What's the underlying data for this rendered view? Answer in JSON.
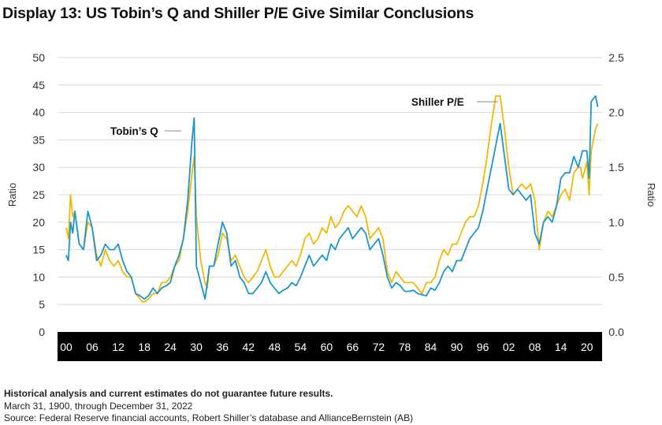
{
  "title": "Display 13: US Tobin’s Q and Shiller P/E Give Similar Conclusions",
  "footer": {
    "disclaimer": "Historical analysis and current estimates do not guarantee future results.",
    "period": "March 31, 1900, through December 31, 2022",
    "source": "Source: Federal Reserve financial accounts, Robert Shiller’s database and AllianceBernstein (AB)"
  },
  "colors": {
    "shiller": "#f2b705",
    "tobin": "#1a96cc",
    "axis_band": "#000000",
    "grid": "#d9d9d9"
  },
  "chart_data": {
    "type": "line",
    "ylabel_left": "Ratio",
    "ylabel_right": "Ratio",
    "xlim": [
      1898,
      2023.5
    ],
    "ylim_left": [
      0,
      50
    ],
    "ylim_right": [
      0,
      2.5
    ],
    "x_ticks": [
      1900,
      1906,
      1912,
      1918,
      1924,
      1930,
      1936,
      1942,
      1948,
      1954,
      1960,
      1966,
      1972,
      1978,
      1984,
      1990,
      1996,
      2002,
      2008,
      2014,
      2020
    ],
    "x_tick_labels": [
      "00",
      "06",
      "12",
      "18",
      "24",
      "30",
      "36",
      "42",
      "48",
      "54",
      "60",
      "66",
      "72",
      "78",
      "84",
      "90",
      "96",
      "02",
      "08",
      "14",
      "20"
    ],
    "y_ticks_left": [
      "0",
      "5",
      "10",
      "15",
      "20",
      "25",
      "30",
      "35",
      "40",
      "45",
      "50"
    ],
    "y_ticks_right": [
      "0.0",
      "0.5",
      "1.0",
      "1.5",
      "2.0",
      "2.5"
    ],
    "grid": "horizontal",
    "annotations": [
      "Tobin’s Q",
      "Shiller P/E"
    ],
    "series": [
      {
        "name": "Shiller P/E",
        "axis": "left",
        "x": [
          1900,
          1900.5,
          1901,
          1901.5,
          1902,
          1903,
          1904,
          1905,
          1906,
          1907,
          1908,
          1909,
          1910,
          1911,
          1912,
          1913,
          1914,
          1915,
          1916,
          1917,
          1917.5,
          1918,
          1919,
          1920,
          1921,
          1922,
          1923,
          1924,
          1925,
          1926,
          1927,
          1928,
          1929,
          1929.5,
          1930,
          1931,
          1932,
          1932.5,
          1933,
          1934,
          1935,
          1936,
          1937,
          1938,
          1939,
          1940,
          1941,
          1942,
          1943,
          1944,
          1945,
          1946,
          1947,
          1948,
          1949,
          1950,
          1951,
          1952,
          1953,
          1954,
          1955,
          1956,
          1957,
          1958,
          1959,
          1960,
          1961,
          1962,
          1963,
          1964,
          1965,
          1966,
          1967,
          1968,
          1969,
          1970,
          1971,
          1972,
          1973,
          1974,
          1975,
          1976,
          1977,
          1978,
          1979,
          1980,
          1981,
          1982,
          1983,
          1984,
          1985,
          1986,
          1987,
          1988,
          1989,
          1990,
          1991,
          1992,
          1993,
          1994,
          1995,
          1996,
          1997,
          1998,
          1999,
          2000,
          2001,
          2002,
          2003,
          2004,
          2005,
          2006,
          2007,
          2008,
          2009,
          2010,
          2011,
          2012,
          2013,
          2014,
          2015,
          2016,
          2017,
          2018,
          2018.5,
          2019,
          2020,
          2020.5,
          2021,
          2022,
          2022.5
        ],
        "values": [
          19,
          17,
          25,
          21,
          22,
          16,
          15,
          20,
          19,
          14,
          12,
          15,
          13,
          12,
          13,
          11,
          10,
          10,
          7,
          6,
          5.5,
          5.5,
          6,
          7,
          7,
          9,
          9,
          10,
          12,
          13,
          17,
          22,
          29,
          32,
          21,
          13,
          9,
          8,
          12,
          12,
          14,
          18,
          17,
          13,
          14,
          12,
          10,
          9,
          10,
          11,
          13,
          15,
          12,
          10,
          10,
          11,
          12,
          13,
          12,
          14,
          17,
          18,
          16,
          17,
          19,
          18,
          21,
          19,
          20,
          22,
          23,
          22,
          21,
          23,
          21,
          17,
          18,
          19,
          17,
          11,
          9,
          11,
          10,
          9,
          9,
          9,
          8,
          7,
          9,
          9,
          10,
          13,
          15,
          14,
          16,
          16,
          18,
          20,
          21,
          21,
          23,
          27,
          32,
          38,
          43,
          43,
          37,
          30,
          25,
          26,
          27,
          26,
          27,
          24,
          15,
          20,
          22,
          21,
          23,
          25,
          26,
          24,
          29,
          30,
          30,
          28,
          31,
          25,
          33,
          37,
          38
        ]
      },
      {
        "name": "Tobin’s Q",
        "axis": "right",
        "x": [
          1900,
          1900.5,
          1901,
          1901.5,
          1902,
          1903,
          1904,
          1905,
          1906,
          1907,
          1908,
          1909,
          1910,
          1911,
          1912,
          1913,
          1914,
          1915,
          1916,
          1917,
          1918,
          1919,
          1920,
          1921,
          1922,
          1923,
          1924,
          1925,
          1926,
          1927,
          1928,
          1929,
          1929.5,
          1930,
          1931,
          1932,
          1933,
          1934,
          1935,
          1936,
          1937,
          1938,
          1939,
          1940,
          1941,
          1942,
          1943,
          1944,
          1945,
          1946,
          1947,
          1948,
          1949,
          1950,
          1951,
          1952,
          1953,
          1954,
          1955,
          1956,
          1957,
          1958,
          1959,
          1960,
          1961,
          1962,
          1963,
          1964,
          1965,
          1966,
          1967,
          1968,
          1969,
          1970,
          1971,
          1972,
          1973,
          1974,
          1975,
          1976,
          1977,
          1978,
          1979,
          1980,
          1981,
          1982,
          1983,
          1984,
          1985,
          1986,
          1987,
          1988,
          1989,
          1990,
          1991,
          1992,
          1993,
          1994,
          1995,
          1996,
          1997,
          1998,
          1999,
          2000,
          2001,
          2002,
          2003,
          2004,
          2005,
          2006,
          2007,
          2008,
          2009,
          2010,
          2011,
          2012,
          2013,
          2014,
          2015,
          2016,
          2017,
          2018,
          2019,
          2020,
          2020.5,
          2021,
          2022,
          2022.5
        ],
        "values": [
          0.7,
          0.65,
          1.0,
          0.9,
          1.1,
          0.8,
          0.75,
          1.1,
          0.95,
          0.65,
          0.7,
          0.8,
          0.75,
          0.75,
          0.8,
          0.65,
          0.55,
          0.5,
          0.35,
          0.33,
          0.3,
          0.33,
          0.4,
          0.35,
          0.4,
          0.42,
          0.45,
          0.6,
          0.7,
          0.85,
          1.2,
          1.75,
          1.95,
          0.6,
          0.45,
          0.3,
          0.6,
          0.6,
          0.8,
          1.0,
          0.9,
          0.6,
          0.65,
          0.5,
          0.45,
          0.35,
          0.35,
          0.4,
          0.45,
          0.55,
          0.45,
          0.4,
          0.35,
          0.38,
          0.4,
          0.45,
          0.42,
          0.5,
          0.6,
          0.7,
          0.6,
          0.65,
          0.7,
          0.65,
          0.8,
          0.75,
          0.85,
          0.9,
          0.95,
          0.85,
          0.9,
          0.95,
          0.9,
          0.75,
          0.8,
          0.85,
          0.7,
          0.5,
          0.4,
          0.45,
          0.42,
          0.37,
          0.37,
          0.38,
          0.35,
          0.34,
          0.33,
          0.4,
          0.38,
          0.45,
          0.55,
          0.6,
          0.55,
          0.65,
          0.65,
          0.75,
          0.85,
          0.9,
          0.95,
          1.1,
          1.3,
          1.5,
          1.7,
          1.9,
          1.6,
          1.3,
          1.25,
          1.3,
          1.25,
          1.2,
          1.25,
          0.9,
          0.8,
          1.0,
          1.05,
          1.0,
          1.15,
          1.4,
          1.45,
          1.45,
          1.6,
          1.5,
          1.65,
          1.65,
          1.4,
          2.1,
          2.15,
          2.05
        ]
      }
    ]
  }
}
